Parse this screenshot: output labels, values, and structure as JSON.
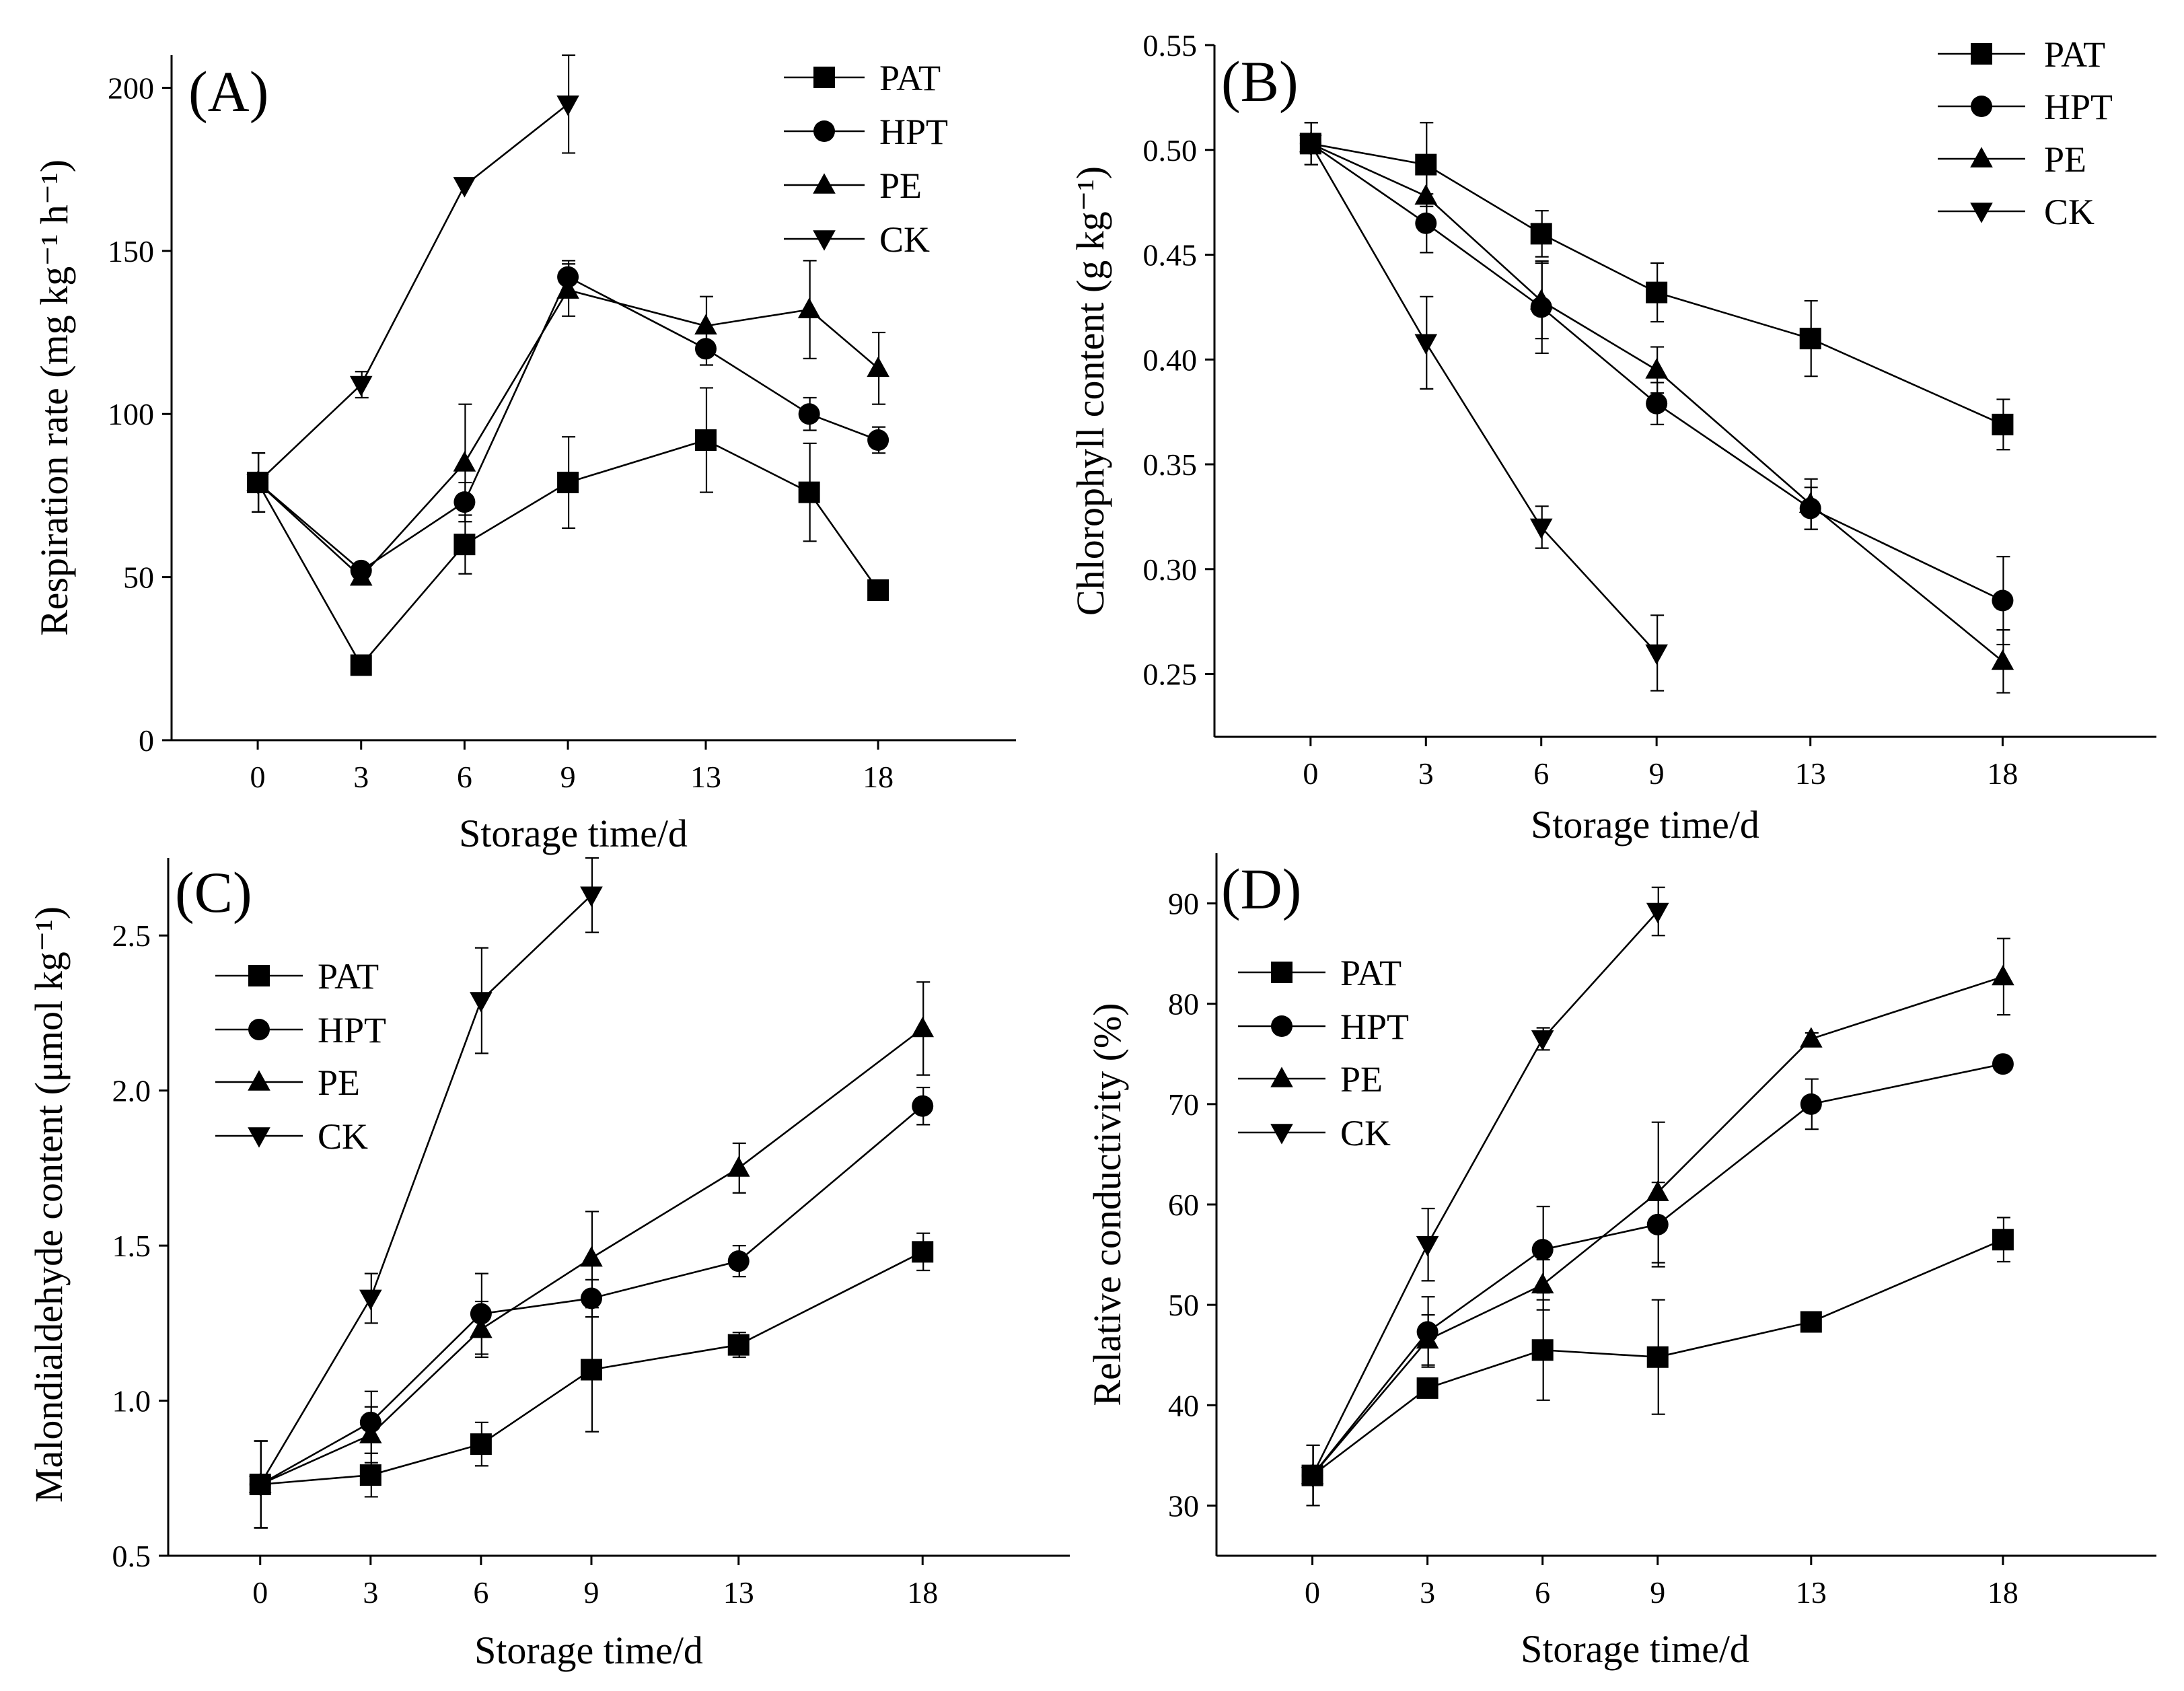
{
  "figure": {
    "colors": {
      "ink": "#000000",
      "background": "#ffffff"
    }
  },
  "chart_data": [
    {
      "type": "line",
      "panel_label": "(A)",
      "xlabel": "Storage time/d",
      "ylabel": "Respiration rate (mg kg⁻¹ h⁻¹)",
      "x_ticks": [
        "0",
        "3",
        "6",
        "9",
        "13",
        "18"
      ],
      "xlim": [
        -2.5,
        22
      ],
      "ylim": [
        0,
        210
      ],
      "y_ticks": [
        0,
        50,
        100,
        150,
        200
      ],
      "y_tick_labels": [
        "0",
        "50",
        "100",
        "150",
        "200"
      ],
      "legend_position": "top-right",
      "series": [
        {
          "name": "PAT",
          "marker": "square",
          "x": [
            0,
            3,
            6,
            9,
            13,
            16,
            18
          ],
          "y": [
            79,
            23,
            60,
            79,
            92,
            76,
            46
          ],
          "err": [
            9,
            0,
            9,
            14,
            16,
            15,
            0
          ]
        },
        {
          "name": "HPT",
          "marker": "circle",
          "x": [
            0,
            3,
            6,
            9,
            13,
            16,
            18
          ],
          "y": [
            79,
            52,
            73,
            142,
            120,
            100,
            92
          ],
          "err": [
            9,
            0,
            6,
            5,
            5,
            5,
            4
          ]
        },
        {
          "name": "PE",
          "marker": "triangle-up",
          "x": [
            0,
            3,
            6,
            9,
            13,
            16,
            18
          ],
          "y": [
            79,
            50,
            85,
            138,
            127,
            132,
            114
          ],
          "err": [
            9,
            0,
            18,
            8,
            9,
            15,
            11
          ]
        },
        {
          "name": "CK",
          "marker": "triangle-down",
          "x": [
            0,
            3,
            6,
            9
          ],
          "y": [
            79,
            109,
            170,
            195
          ],
          "err": [
            9,
            4,
            0,
            15
          ]
        }
      ]
    },
    {
      "type": "line",
      "panel_label": "(B)",
      "xlabel": "Storage time/d",
      "ylabel": "Chlorophyll content (g kg⁻¹)",
      "x_ticks": [
        "0",
        "3",
        "6",
        "9",
        "13",
        "18"
      ],
      "xlim": [
        -2.5,
        22
      ],
      "ylim": [
        0.22,
        0.55
      ],
      "y_ticks": [
        0.25,
        0.3,
        0.35,
        0.4,
        0.45,
        0.5,
        0.55
      ],
      "y_tick_labels": [
        "0.25",
        "0.30",
        "0.35",
        "0.40",
        "0.45",
        "0.50",
        "0.55"
      ],
      "legend_position": "top-right",
      "series": [
        {
          "name": "PAT",
          "marker": "square",
          "x": [
            0,
            3,
            6,
            9,
            13,
            18
          ],
          "y": [
            0.503,
            0.493,
            0.46,
            0.432,
            0.41,
            0.369
          ],
          "err": [
            0.01,
            0.02,
            0.011,
            0.014,
            0.018,
            0.012
          ]
        },
        {
          "name": "HPT",
          "marker": "circle",
          "x": [
            0,
            3,
            6,
            9,
            13,
            18
          ],
          "y": [
            0.503,
            0.465,
            0.425,
            0.379,
            0.329,
            0.285
          ],
          "err": [
            0.01,
            0.014,
            0.022,
            0.01,
            0.01,
            0.021
          ]
        },
        {
          "name": "PE",
          "marker": "triangle-up",
          "x": [
            0,
            3,
            6,
            9,
            13,
            18
          ],
          "y": [
            0.503,
            0.478,
            0.428,
            0.395,
            0.331,
            0.256
          ],
          "err": [
            0.01,
            0.011,
            0.018,
            0.011,
            0.012,
            0.015
          ]
        },
        {
          "name": "CK",
          "marker": "triangle-down",
          "x": [
            0,
            3,
            6,
            9
          ],
          "y": [
            0.503,
            0.408,
            0.32,
            0.26
          ],
          "err": [
            0.01,
            0.022,
            0.01,
            0.018
          ]
        }
      ]
    },
    {
      "type": "line",
      "panel_label": "(C)",
      "xlabel": "Storage time/d",
      "ylabel": "Malondialdehyde content (μmol kg⁻¹)",
      "x_ticks": [
        "0",
        "3",
        "6",
        "9",
        "13",
        "18"
      ],
      "xlim": [
        -2.5,
        22
      ],
      "ylim": [
        0.5,
        2.75
      ],
      "y_ticks": [
        0.5,
        1.0,
        1.5,
        2.0,
        2.5
      ],
      "y_tick_labels": [
        "0.5",
        "1.0",
        "1.5",
        "2.0",
        "2.5"
      ],
      "legend_position": "top-left",
      "series": [
        {
          "name": "PAT",
          "marker": "square",
          "x": [
            0,
            3,
            6,
            9,
            13,
            18
          ],
          "y": [
            0.73,
            0.76,
            0.86,
            1.1,
            1.18,
            1.48
          ],
          "err": [
            0.14,
            0.07,
            0.07,
            0.2,
            0.04,
            0.06
          ]
        },
        {
          "name": "HPT",
          "marker": "circle",
          "x": [
            0,
            3,
            6,
            9,
            13,
            18
          ],
          "y": [
            0.73,
            0.93,
            1.28,
            1.33,
            1.45,
            1.95
          ],
          "err": [
            0.14,
            0.1,
            0.13,
            0.06,
            0.05,
            0.06
          ]
        },
        {
          "name": "PE",
          "marker": "triangle-up",
          "x": [
            0,
            3,
            6,
            9,
            13,
            18
          ],
          "y": [
            0.73,
            0.89,
            1.23,
            1.46,
            1.75,
            2.2
          ],
          "err": [
            0.14,
            0.09,
            0.09,
            0.15,
            0.08,
            0.15
          ]
        },
        {
          "name": "CK",
          "marker": "triangle-down",
          "x": [
            0,
            3,
            6,
            9
          ],
          "y": [
            0.73,
            1.33,
            2.29,
            2.63
          ],
          "err": [
            0.14,
            0.08,
            0.17,
            0.12
          ]
        }
      ]
    },
    {
      "type": "line",
      "panel_label": "(D)",
      "xlabel": "Storage time/d",
      "ylabel": "Relative conductivity (%)",
      "x_ticks": [
        "0",
        "3",
        "6",
        "9",
        "13",
        "18"
      ],
      "xlim": [
        -2.5,
        22
      ],
      "ylim": [
        25,
        95
      ],
      "y_ticks": [
        30,
        40,
        50,
        60,
        70,
        80,
        90
      ],
      "y_tick_labels": [
        "30",
        "40",
        "50",
        "60",
        "70",
        "80",
        "90"
      ],
      "legend_position": "top-left",
      "series": [
        {
          "name": "PAT",
          "marker": "square",
          "x": [
            0,
            3,
            6,
            9,
            13,
            18
          ],
          "y": [
            33,
            41.7,
            45.5,
            44.8,
            48.3,
            56.5
          ],
          "err": [
            3,
            0.8,
            5,
            5.7,
            0.8,
            2.2
          ]
        },
        {
          "name": "HPT",
          "marker": "circle",
          "x": [
            0,
            3,
            6,
            9,
            13,
            18
          ],
          "y": [
            33,
            47.3,
            55.5,
            58.0,
            70.0,
            74.0
          ],
          "err": [
            3,
            3.5,
            4.3,
            4.2,
            2.5,
            0.6
          ]
        },
        {
          "name": "PE",
          "marker": "triangle-up",
          "x": [
            0,
            3,
            6,
            9,
            13,
            18
          ],
          "y": [
            33,
            46.5,
            52.0,
            61.2,
            76.5,
            82.7
          ],
          "err": [
            3,
            2.5,
            2.5,
            7.0,
            0.6,
            3.8
          ]
        },
        {
          "name": "CK",
          "marker": "triangle-down",
          "x": [
            0,
            3,
            6,
            9
          ],
          "y": [
            33,
            56.0,
            76.5,
            89.2
          ],
          "err": [
            3,
            3.6,
            1.1,
            2.4
          ]
        }
      ]
    }
  ]
}
